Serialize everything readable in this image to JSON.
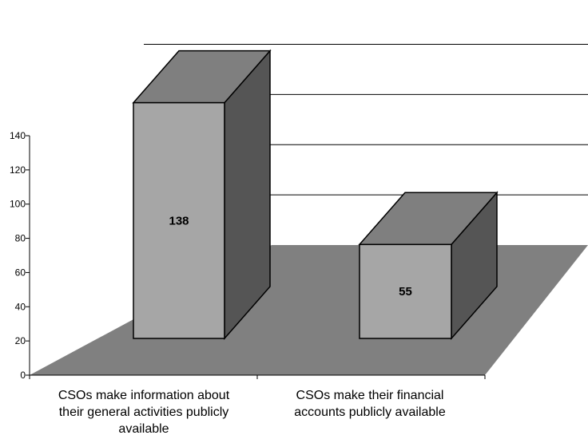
{
  "chart_data": {
    "type": "bar",
    "style": "3d",
    "categories": [
      [
        "CSOs make information about",
        "their general activities publicly",
        "available"
      ],
      [
        "CSOs make their financial",
        "accounts publicly available"
      ]
    ],
    "values": [
      138,
      55
    ],
    "data_labels": [
      "138",
      "55"
    ],
    "y_ticks": [
      "0",
      "20",
      "40",
      "60",
      "80",
      "100",
      "120",
      "140"
    ],
    "ylim": [
      0,
      140
    ],
    "grid": true,
    "legend": "none",
    "colors": {
      "floor": "#808080",
      "bar_front": "#a6a6a6",
      "bar_top": "#7f7f7f",
      "bar_side": "#555555",
      "gridline": "#000000"
    }
  }
}
